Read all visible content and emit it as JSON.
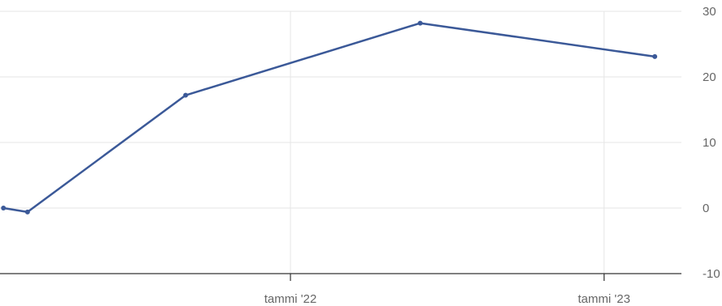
{
  "chart_data": {
    "type": "line",
    "title": "",
    "xlabel": "",
    "ylabel": "",
    "x_axis": {
      "type": "date",
      "range": [
        "2021-01-28",
        "2023-04-01"
      ],
      "ticks": [
        {
          "value": "2022-01-01",
          "label": "tammi '22"
        },
        {
          "value": "2023-01-01",
          "label": "tammi '23"
        }
      ],
      "grid": true
    },
    "y_axis": {
      "position": "right",
      "range": [
        -10,
        30
      ],
      "ticks": [
        -10,
        0,
        10,
        20,
        30
      ],
      "grid": true
    },
    "series": [
      {
        "color": "#3b5998",
        "points": [
          {
            "x": "2021-02-01",
            "y": 0
          },
          {
            "x": "2021-03-01",
            "y": -0.6
          },
          {
            "x": "2021-09-01",
            "y": 17.2
          },
          {
            "x": "2022-06-01",
            "y": 28.2
          },
          {
            "x": "2023-03-01",
            "y": 23.1
          }
        ]
      }
    ],
    "legend": "none"
  }
}
